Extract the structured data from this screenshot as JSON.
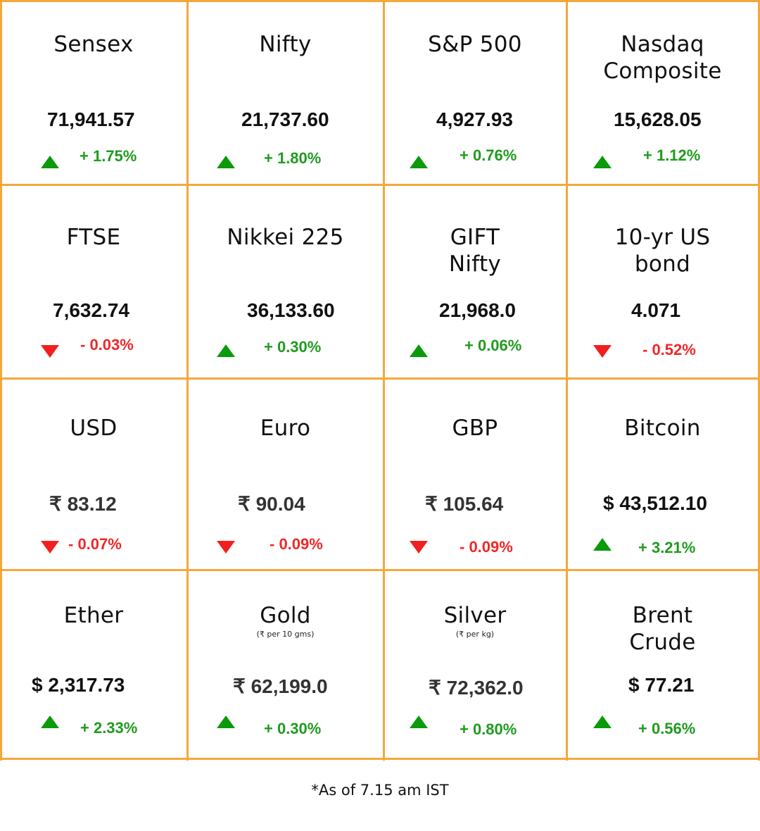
{
  "colors": {
    "border": "#f5a83a",
    "up": "#1f9b1f",
    "down": "#f02727"
  },
  "cells": [
    {
      "name": "Sensex",
      "value": "71,941.57",
      "change": "+ 1.75%",
      "dir": "up"
    },
    {
      "name": "Nifty",
      "value": "21,737.60",
      "change": "+ 1.80%",
      "dir": "up"
    },
    {
      "name": "S&P 500",
      "value": "4,927.93",
      "change": "+ 0.76%",
      "dir": "up"
    },
    {
      "name": "Nasdaq Composite",
      "value": "15,628.05",
      "change": "+ 1.12%",
      "dir": "up"
    },
    {
      "name": "FTSE",
      "value": "7,632.74",
      "change": "- 0.03%",
      "dir": "down"
    },
    {
      "name": "Nikkei 225",
      "value": "36,133.60",
      "change": "+ 0.30%",
      "dir": "up"
    },
    {
      "name": "GIFT Nifty",
      "value": "21,968.0",
      "change": "+ 0.06%",
      "dir": "up"
    },
    {
      "name": "10-yr US bond",
      "value": "4.071",
      "change": "- 0.52%",
      "dir": "down"
    },
    {
      "name": "USD",
      "value": "₹ 83.12",
      "change": "- 0.07%",
      "dir": "down"
    },
    {
      "name": "Euro",
      "value": "₹ 90.04",
      "change": "- 0.09%",
      "dir": "down"
    },
    {
      "name": "GBP",
      "value": "₹ 105.64",
      "change": "- 0.09%",
      "dir": "down"
    },
    {
      "name": "Bitcoin",
      "value": "$ 43,512.10",
      "change": "+ 3.21%",
      "dir": "up"
    },
    {
      "name": "Ether",
      "value": "$ 2,317.73",
      "change": "+ 2.33%",
      "dir": "up"
    },
    {
      "name": "Gold",
      "sub": "(₹ per 10 gms)",
      "value": "₹ 62,199.0",
      "change": "+ 0.30%",
      "dir": "up"
    },
    {
      "name": "Silver",
      "sub": "(₹ per kg)",
      "value": "₹ 72,362.0",
      "change": "+ 0.80%",
      "dir": "up"
    },
    {
      "name": "Brent Crude",
      "value": "$ 77.21",
      "change": "+ 0.56%",
      "dir": "up"
    }
  ],
  "footer": "*As of 7.15 am IST"
}
